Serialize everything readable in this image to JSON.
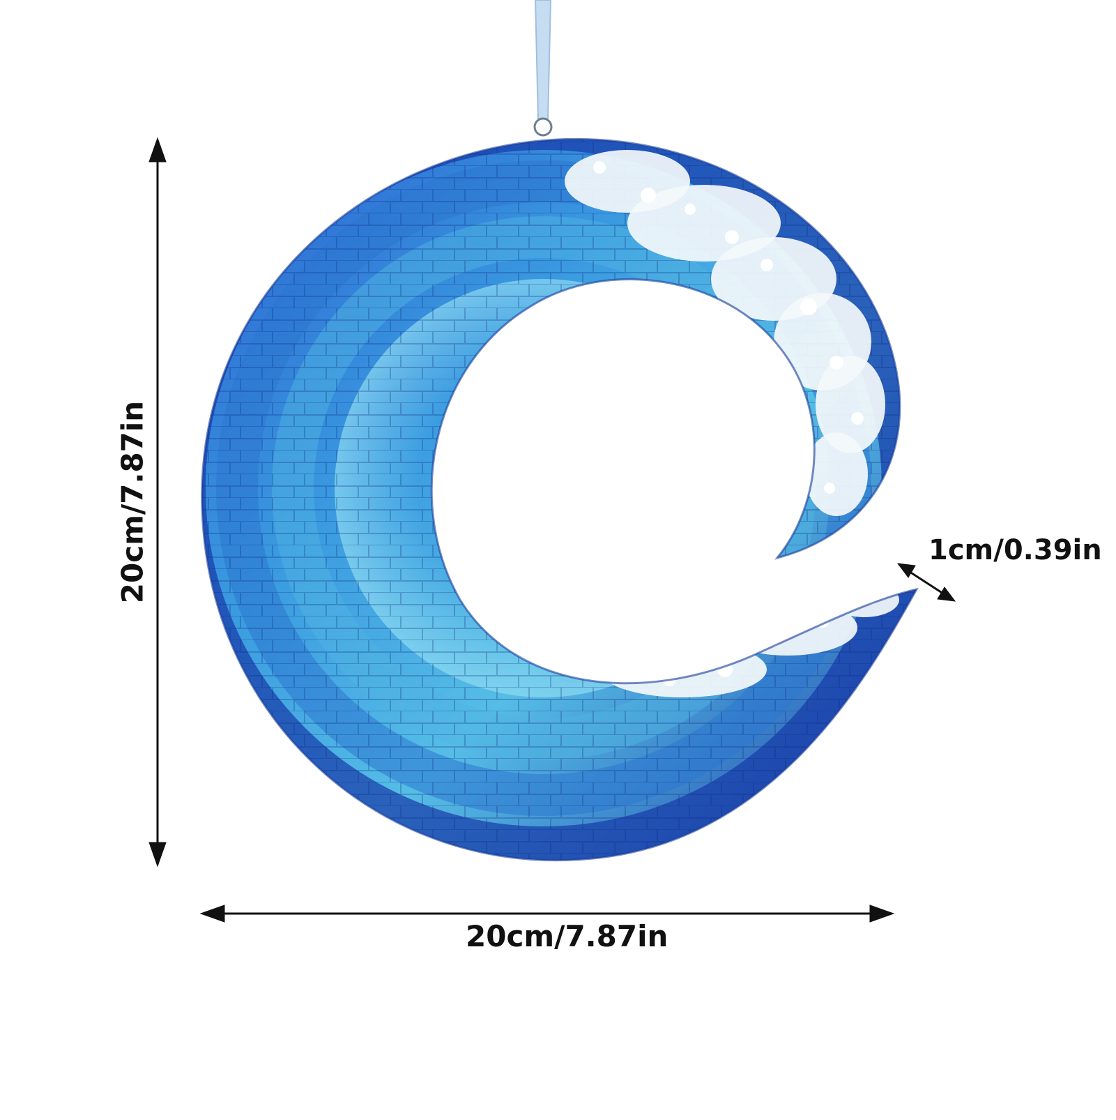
{
  "product": {
    "name": "wave-suncatcher-ornament",
    "colors": {
      "deep_blue": "#1b3fb5",
      "mid_blue": "#2f7fd6",
      "aqua": "#5cc6e8",
      "foam_white": "#f4f8fb",
      "ribbon": "#b8d4ee"
    }
  },
  "dimensions": {
    "width_label": "20cm/7.87in",
    "height_label": "20cm/7.87in",
    "gap_label": "1cm/0.39in"
  }
}
